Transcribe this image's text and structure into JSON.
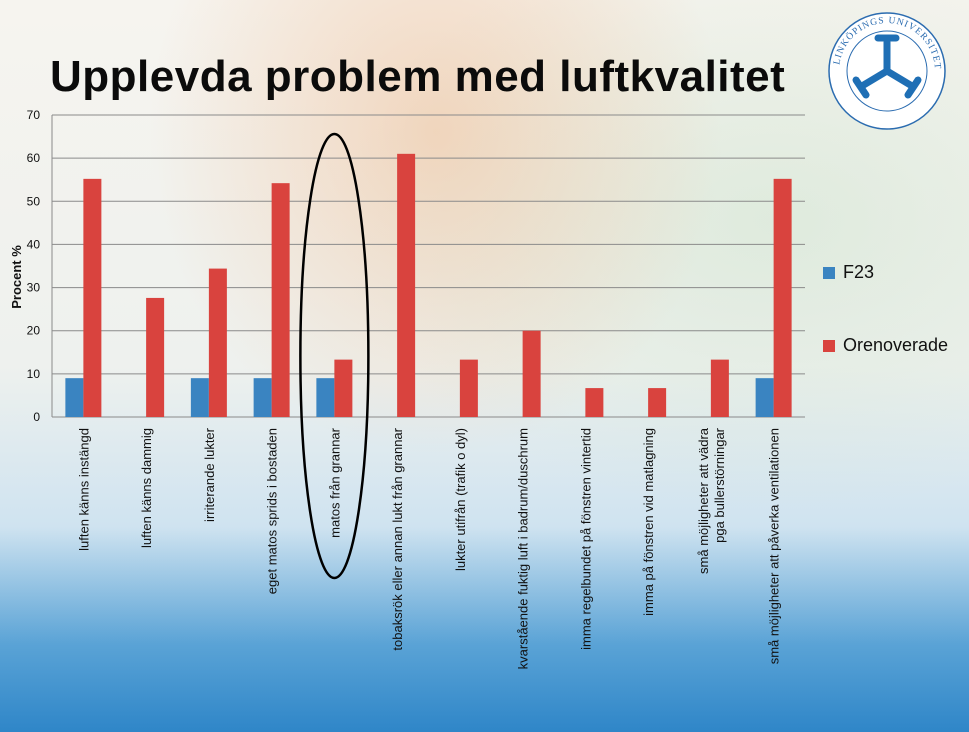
{
  "title": "Upplevda problem med luftkvalitet",
  "logo_text": "LINKÖPINGS UNIVERSITET",
  "colors": {
    "F23": "#3a84c1",
    "Orenoverade": "#d9433e",
    "grid": "#8a8a8a"
  },
  "chart_data": {
    "type": "bar",
    "title": "",
    "xlabel": "",
    "ylabel": "Procent %",
    "ylim": [
      0,
      70
    ],
    "yticks": [
      0,
      10,
      20,
      30,
      40,
      50,
      60,
      70
    ],
    "categories": [
      "luften känns instängd",
      "luften känns dammig",
      "irriterande lukter",
      "eget matos sprids i bostaden",
      "matos från grannar",
      "tobaksrök eller annan lukt från grannar",
      "lukter utifrån (trafik o dyl)",
      "kvarstående fuktig luft i badrum/duschrum",
      "imma regelbundet på fönstren vintertid",
      "imma på fönstren vid matlagning",
      "små möjligheter att vädra pga bullerstörningar",
      "små möjligheter att påverka ventilationen"
    ],
    "series": [
      {
        "name": "F23",
        "values": [
          9,
          0,
          9,
          9,
          9,
          0,
          0,
          0,
          0,
          0,
          0,
          9
        ]
      },
      {
        "name": "Orenoverade",
        "values": [
          55.2,
          27.6,
          34.4,
          54.2,
          13.3,
          61.0,
          13.3,
          20.0,
          6.7,
          6.7,
          13.3,
          55.2
        ]
      }
    ],
    "legend_position": "right",
    "grid": true,
    "highlight": "matos från grannar"
  }
}
